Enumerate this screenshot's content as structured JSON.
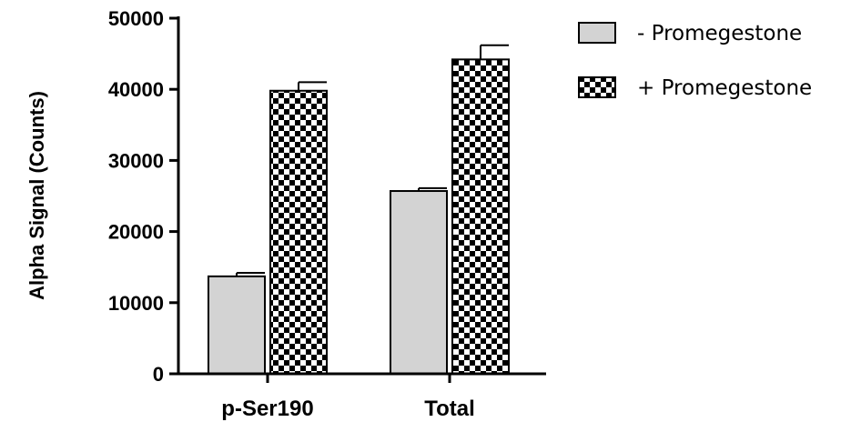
{
  "chart_data": {
    "type": "bar",
    "categories": [
      "p-Ser190",
      "Total"
    ],
    "ylabel": "Alpha Signal (Counts)",
    "xlabel": "",
    "ylim": [
      0,
      50000
    ],
    "yticks": [
      0,
      10000,
      20000,
      30000,
      40000,
      50000
    ],
    "grid": false,
    "legend_position": "top-right",
    "series": [
      {
        "name": "- Promegestone",
        "values": [
          13700,
          25700
        ],
        "errors": [
          500,
          400
        ],
        "pattern": "solid",
        "color": "#d3d3d3"
      },
      {
        "name": "+ Promegestone",
        "values": [
          39800,
          44200
        ],
        "errors": [
          1200,
          2000
        ],
        "pattern": "checker",
        "color": "#000000"
      }
    ]
  }
}
